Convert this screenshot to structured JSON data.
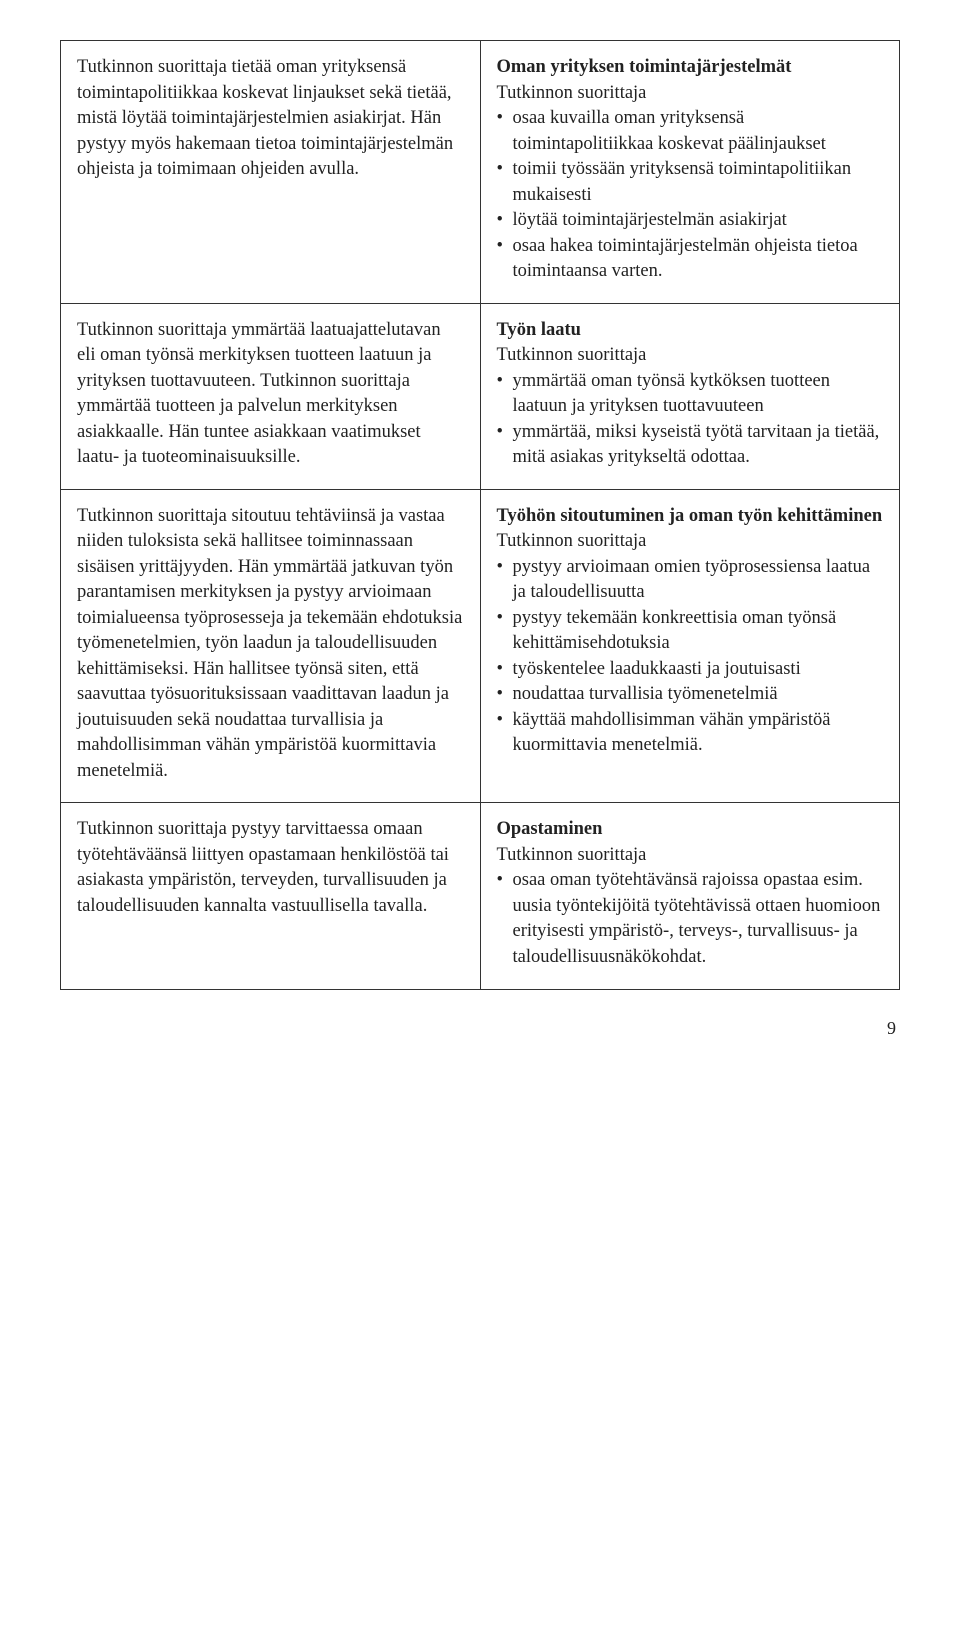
{
  "pageNumber": "9",
  "rows": [
    {
      "left": {
        "paragraphs": [
          "Tutkinnon suorittaja tietää oman yrityksensä toimintapolitiikkaa koskevat linjaukset sekä tietää, mistä löytää toimintajärjestelmien asiakirjat. Hän pystyy myös hakemaan tietoa toimintajärjestelmän ohjeista ja toimimaan ohjeiden avulla."
        ]
      },
      "right": {
        "heading": "Oman yrityksen toimintajärjestelmät",
        "intro": "Tutkinnon suorittaja",
        "bullets": [
          "osaa kuvailla oman yrityksensä toimintapolitiikkaa koskevat päälinjaukset",
          "toimii työssään yrityksensä toimintapolitiikan mukaisesti",
          "löytää toimintajärjestelmän asiakirjat",
          "osaa hakea toimintajärjestelmän ohjeista tietoa toimintaansa varten."
        ]
      }
    },
    {
      "left": {
        "paragraphs": [
          "Tutkinnon suorittaja ymmärtää laatuajattelutavan eli oman työnsä merkityksen tuotteen laatuun ja yrityksen tuottavuuteen. Tutkinnon suorittaja ymmärtää tuotteen ja palvelun merkityksen asiakkaalle. Hän tuntee asiakkaan vaatimukset laatu- ja tuoteominaisuuksille."
        ]
      },
      "right": {
        "heading": "Työn laatu",
        "intro": "Tutkinnon suorittaja",
        "bullets": [
          "ymmärtää oman työnsä kytköksen tuotteen laatuun ja yrityksen tuottavuuteen",
          "ymmärtää, miksi kyseistä työtä tarvitaan ja tietää, mitä asiakas yritykseltä odottaa."
        ]
      }
    },
    {
      "left": {
        "paragraphs": [
          "Tutkinnon suorittaja sitoutuu tehtäviinsä ja vastaa niiden tuloksista sekä hallitsee toiminnassaan sisäisen yrittäjyyden. Hän ymmärtää jatkuvan työn parantamisen merkityksen ja pystyy arvioimaan toimialueensa työprosesseja ja tekemään ehdotuksia työmenetelmien, työn laadun ja taloudellisuuden kehittämiseksi. Hän hallitsee työnsä siten, että saavuttaa työsuorituksissaan vaadittavan laadun ja joutuisuuden sekä noudattaa turvallisia ja mahdollisimman vähän ympäristöä kuormittavia menetelmiä."
        ]
      },
      "right": {
        "heading": "Työhön sitoutuminen ja oman työn kehittäminen",
        "intro": "Tutkinnon suorittaja",
        "bullets": [
          "pystyy arvioimaan omien työprosessiensa laatua ja taloudellisuutta",
          "pystyy tekemään konkreettisia oman työnsä kehittämisehdotuksia",
          "työskentelee laadukkaasti ja joutuisasti",
          "noudattaa turvallisia työmenetelmiä",
          "käyttää mahdollisimman vähän ympäristöä kuormittavia menetelmiä."
        ]
      }
    },
    {
      "left": {
        "paragraphs": [
          "Tutkinnon suorittaja pystyy tarvittaessa omaan työtehtäväänsä liittyen opastamaan henkilöstöä tai asiakasta ympäristön, terveyden, turvallisuuden ja taloudellisuuden kannalta vastuullisella tavalla."
        ]
      },
      "right": {
        "heading": "Opastaminen",
        "intro": "Tutkinnon suorittaja",
        "bullets": [
          "osaa oman työtehtävänsä rajoissa opastaa esim. uusia työntekijöitä työtehtävissä ottaen huomioon erityisesti ympäristö-, terveys-, turvallisuus- ja taloudellisuusnäkökohdat."
        ]
      }
    }
  ]
}
